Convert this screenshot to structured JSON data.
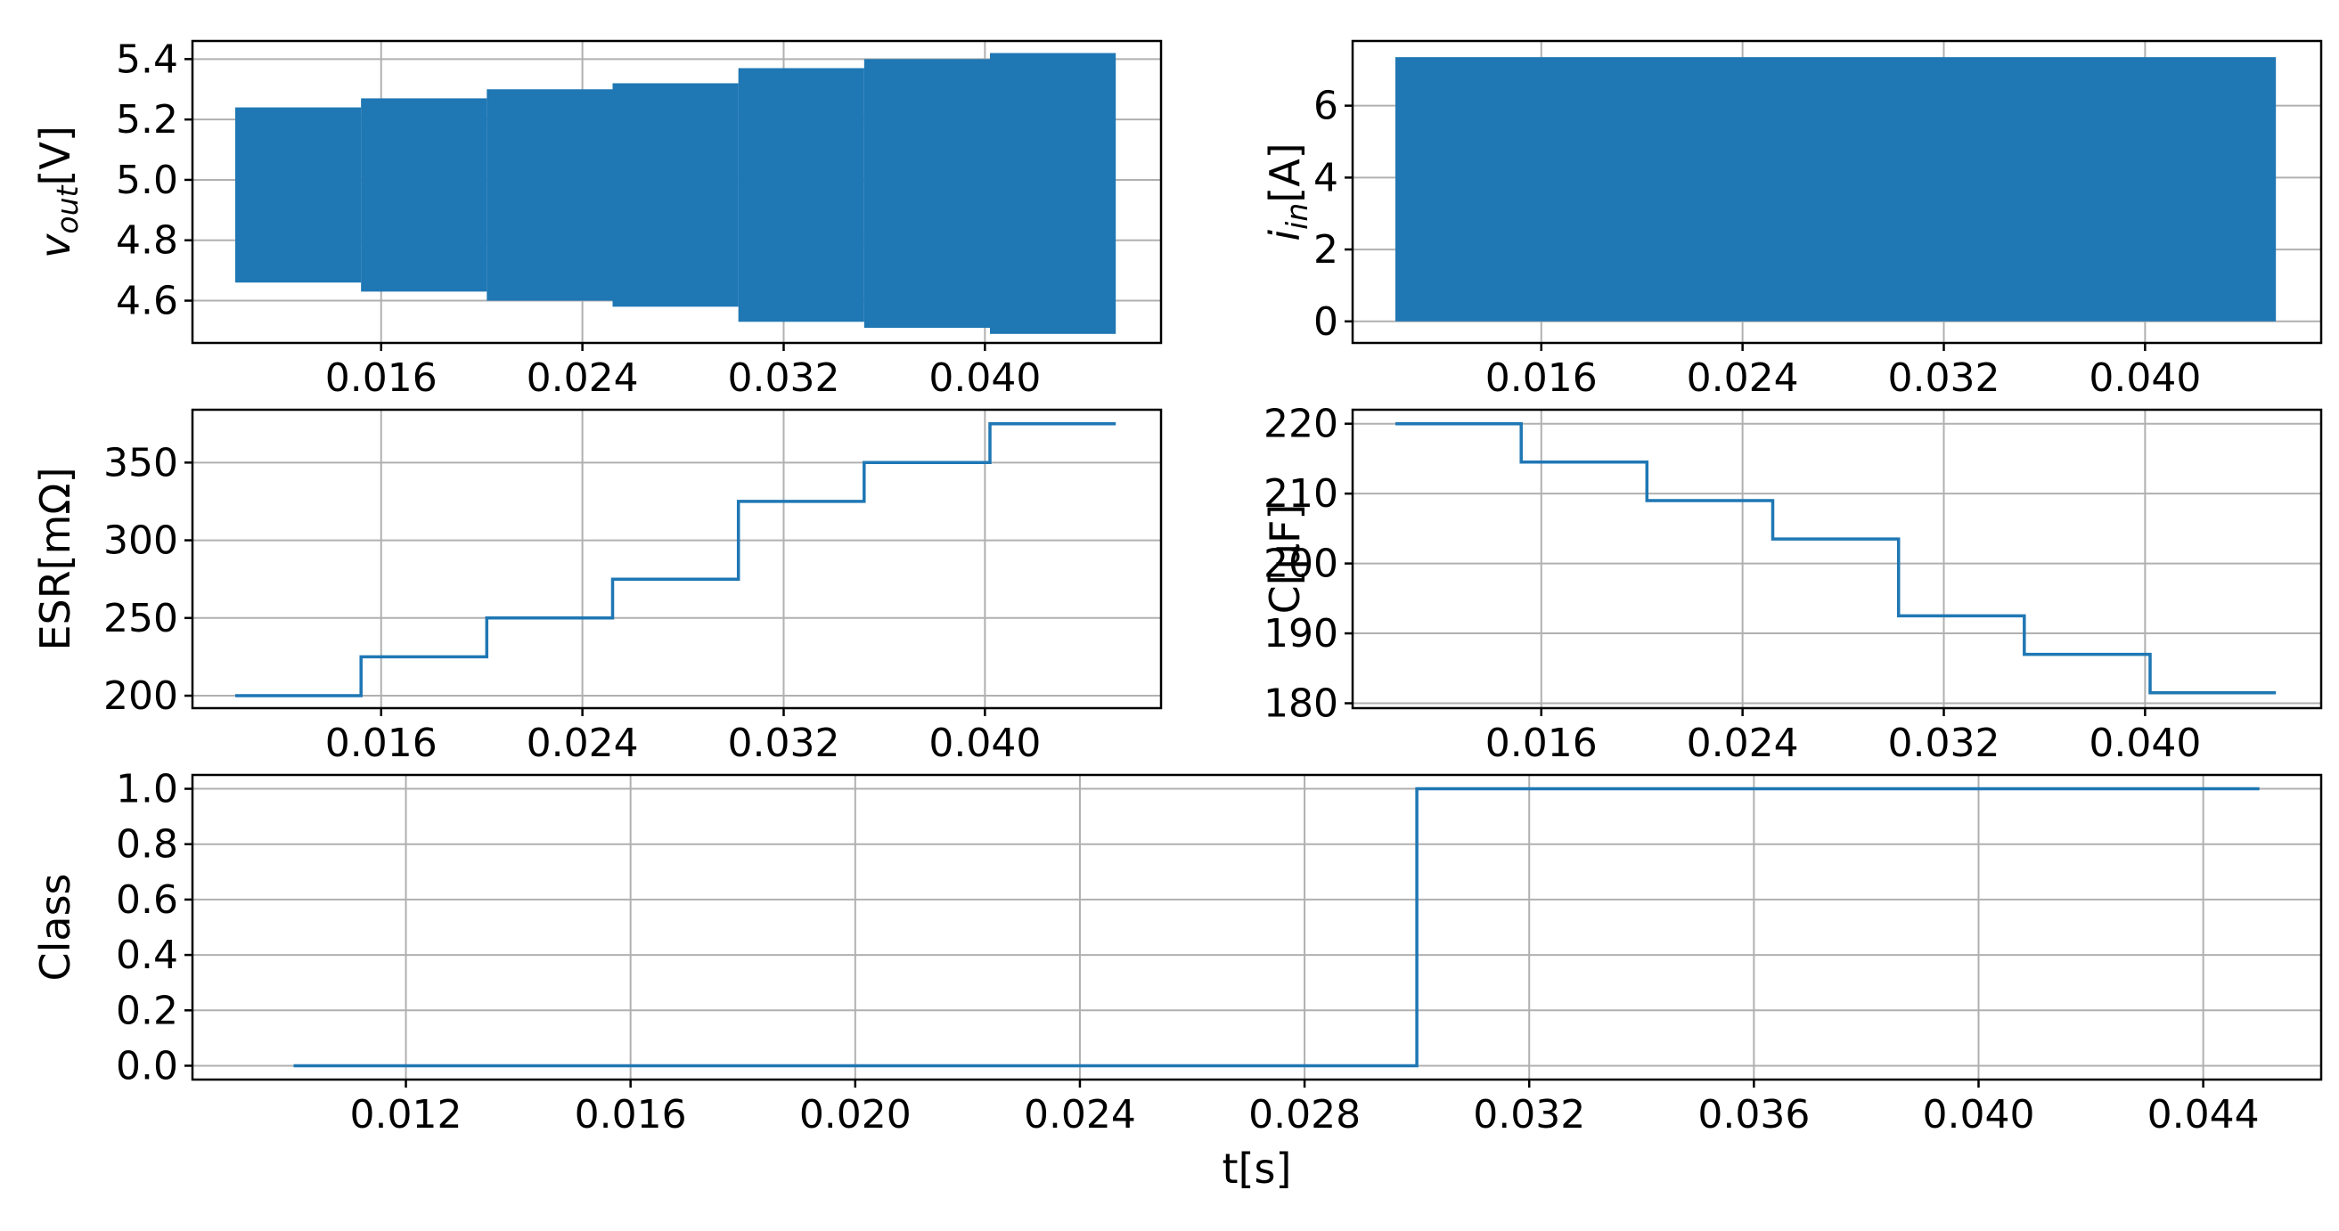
{
  "figure": {
    "line_color": "#1f77b4",
    "grid_color": "#b0b0b0"
  },
  "chart_data": [
    {
      "id": "vout",
      "type": "area",
      "ylabel_main": "v",
      "ylabel_sub": "out",
      "ylabel_unit": "[V]",
      "xlim": [
        0.0085,
        0.047
      ],
      "ylim": [
        4.46,
        5.46
      ],
      "x_ticks": [
        "0.016",
        "0.024",
        "0.032",
        "0.040"
      ],
      "x_tick_values": [
        0.016,
        0.024,
        0.032,
        0.04
      ],
      "y_ticks": [
        "4.6",
        "4.8",
        "5.0",
        "5.2",
        "5.4"
      ],
      "y_tick_values": [
        4.6,
        4.8,
        5.0,
        5.2,
        5.4
      ],
      "grid": true,
      "band_segments": [
        {
          "x0": 0.0102,
          "x1": 0.0152,
          "y_min": 4.66,
          "y_max": 5.24
        },
        {
          "x0": 0.0152,
          "x1": 0.0202,
          "y_min": 4.63,
          "y_max": 5.27
        },
        {
          "x0": 0.0202,
          "x1": 0.0252,
          "y_min": 4.6,
          "y_max": 5.3
        },
        {
          "x0": 0.0252,
          "x1": 0.0302,
          "y_min": 4.58,
          "y_max": 5.32
        },
        {
          "x0": 0.0302,
          "x1": 0.0352,
          "y_min": 4.53,
          "y_max": 5.37
        },
        {
          "x0": 0.0352,
          "x1": 0.0402,
          "y_min": 4.51,
          "y_max": 5.4
        },
        {
          "x0": 0.0402,
          "x1": 0.0452,
          "y_min": 4.49,
          "y_max": 5.42
        }
      ]
    },
    {
      "id": "iin",
      "type": "area",
      "ylabel_main": "i",
      "ylabel_sub": "in",
      "ylabel_unit": "[A]",
      "xlim": [
        0.0085,
        0.047
      ],
      "ylim": [
        -0.6,
        7.8
      ],
      "x_ticks": [
        "0.016",
        "0.024",
        "0.032",
        "0.040"
      ],
      "x_tick_values": [
        0.016,
        0.024,
        0.032,
        0.04
      ],
      "y_ticks": [
        "0",
        "2",
        "4",
        "6"
      ],
      "y_tick_values": [
        0,
        2,
        4,
        6
      ],
      "grid": true,
      "band_segments": [
        {
          "x0": 0.0102,
          "x1": 0.0452,
          "y_min": 0.0,
          "y_max": 7.35
        }
      ]
    },
    {
      "id": "esr",
      "type": "line",
      "ylabel": "ESR[mΩ]",
      "xlim": [
        0.0085,
        0.047
      ],
      "ylim": [
        192,
        384
      ],
      "x_ticks": [
        "0.016",
        "0.024",
        "0.032",
        "0.040"
      ],
      "x_tick_values": [
        0.016,
        0.024,
        0.032,
        0.04
      ],
      "y_ticks": [
        "200",
        "250",
        "300",
        "350"
      ],
      "y_tick_values": [
        200,
        250,
        300,
        350
      ],
      "grid": true,
      "step_points": [
        [
          0.0102,
          200
        ],
        [
          0.0152,
          200
        ],
        [
          0.0152,
          225
        ],
        [
          0.0202,
          225
        ],
        [
          0.0202,
          250
        ],
        [
          0.0252,
          250
        ],
        [
          0.0252,
          275
        ],
        [
          0.0302,
          275
        ],
        [
          0.0302,
          325
        ],
        [
          0.0352,
          325
        ],
        [
          0.0352,
          350
        ],
        [
          0.0402,
          350
        ],
        [
          0.0402,
          375
        ],
        [
          0.0452,
          375
        ]
      ]
    },
    {
      "id": "cap",
      "type": "line",
      "ylabel": "C[µF]",
      "xlim": [
        0.0085,
        0.047
      ],
      "ylim": [
        179.3,
        222.0
      ],
      "x_ticks": [
        "0.016",
        "0.024",
        "0.032",
        "0.040"
      ],
      "x_tick_values": [
        0.016,
        0.024,
        0.032,
        0.04
      ],
      "y_ticks": [
        "180",
        "190",
        "200",
        "210",
        "220"
      ],
      "y_tick_values": [
        180,
        190,
        200,
        210,
        220
      ],
      "grid": true,
      "step_points": [
        [
          0.0102,
          220
        ],
        [
          0.0152,
          220
        ],
        [
          0.0152,
          214.5
        ],
        [
          0.0202,
          214.5
        ],
        [
          0.0202,
          209
        ],
        [
          0.0252,
          209
        ],
        [
          0.0252,
          203.5
        ],
        [
          0.0302,
          203.5
        ],
        [
          0.0302,
          192.5
        ],
        [
          0.0352,
          192.5
        ],
        [
          0.0352,
          187
        ],
        [
          0.0402,
          187
        ],
        [
          0.0402,
          181.5
        ],
        [
          0.0452,
          181.5
        ]
      ]
    },
    {
      "id": "class",
      "type": "line",
      "ylabel": "Class",
      "xlabel": "t[s]",
      "xlim": [
        0.0082,
        0.0461
      ],
      "ylim": [
        -0.05,
        1.05
      ],
      "x_ticks": [
        "0.012",
        "0.016",
        "0.020",
        "0.024",
        "0.028",
        "0.032",
        "0.036",
        "0.040",
        "0.044"
      ],
      "x_tick_values": [
        0.012,
        0.016,
        0.02,
        0.024,
        0.028,
        0.032,
        0.036,
        0.04,
        0.044
      ],
      "y_ticks": [
        "0.0",
        "0.2",
        "0.4",
        "0.6",
        "0.8",
        "1.0"
      ],
      "y_tick_values": [
        0.0,
        0.2,
        0.4,
        0.6,
        0.8,
        1.0
      ],
      "grid": true,
      "step_points": [
        [
          0.01,
          0
        ],
        [
          0.03,
          0
        ],
        [
          0.03,
          1
        ],
        [
          0.045,
          1
        ]
      ]
    }
  ]
}
